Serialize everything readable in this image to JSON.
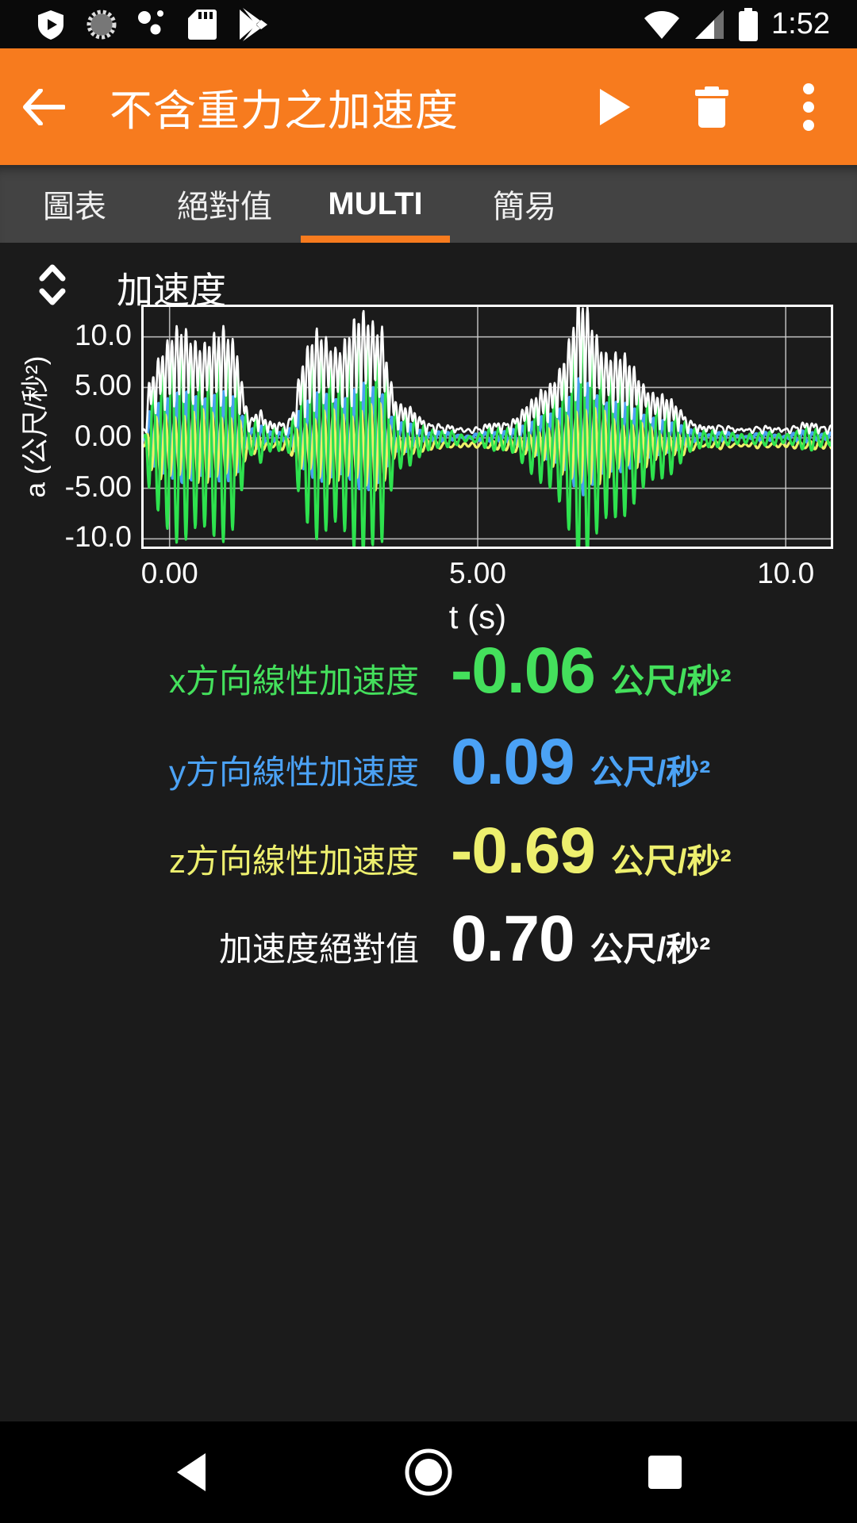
{
  "colors": {
    "accent_orange": "#f77b1e",
    "background": "#1b1b1b",
    "tab_bar": "#434343",
    "series_x_green": "#2ee24e",
    "series_y_blue": "#4aa0f0",
    "series_z_yellow": "#eef068",
    "series_abs_white": "#ffffff"
  },
  "status_bar": {
    "time": "1:52",
    "icons_left": [
      "play-protect-shield",
      "sync-spinner",
      "dots-cluster",
      "sd-card",
      "play-store"
    ],
    "icons_right": [
      "wifi",
      "cell-signal",
      "battery"
    ]
  },
  "app_bar": {
    "title": "不含重力之加速度",
    "back": "arrow-left",
    "actions": [
      {
        "name": "play",
        "icon": "play-triangle"
      },
      {
        "name": "delete",
        "icon": "trash"
      },
      {
        "name": "overflow",
        "icon": "three-dots-vertical"
      }
    ]
  },
  "tabs": {
    "items": [
      {
        "label": "圖表",
        "selected": false
      },
      {
        "label": "絕對值",
        "selected": false
      },
      {
        "label": "MULTI",
        "selected": true
      },
      {
        "label": "簡易",
        "selected": false
      }
    ]
  },
  "chart_data": {
    "type": "line",
    "title": "加速度",
    "xlabel": "t (s)",
    "ylabel": "a (公尺/秒²)",
    "x_range": [
      -0.46,
      10.77
    ],
    "y_range": [
      -11.0,
      13.2
    ],
    "x_ticks": [
      {
        "v": 0,
        "label": "0.00"
      },
      {
        "v": 5,
        "label": "5.00"
      },
      {
        "v": 10,
        "label": "10.0"
      }
    ],
    "y_ticks": [
      {
        "v": 10,
        "label": "10.0"
      },
      {
        "v": 5,
        "label": "5.00"
      },
      {
        "v": 0,
        "label": "0.00"
      },
      {
        "v": -5,
        "label": "-5.00"
      },
      {
        "v": -10,
        "label": "-10.0"
      }
    ],
    "grid": true,
    "legend": "none",
    "sample_rate_hz": 120,
    "carrier_freq_hz": 6.6,
    "envelope": [
      [
        -0.46,
        0.1
      ],
      [
        -0.4,
        0.35
      ],
      [
        -0.33,
        5.5
      ],
      [
        -0.15,
        8.6
      ],
      [
        0.3,
        8.9
      ],
      [
        0.6,
        9.4
      ],
      [
        0.9,
        8.8
      ],
      [
        1.1,
        7.8
      ],
      [
        1.22,
        3.5
      ],
      [
        1.32,
        1.6
      ],
      [
        1.45,
        2.6
      ],
      [
        1.6,
        1.2
      ],
      [
        1.9,
        0.9
      ],
      [
        2.02,
        2.8
      ],
      [
        2.12,
        6.8
      ],
      [
        2.4,
        8.6
      ],
      [
        2.7,
        9.0
      ],
      [
        3.0,
        9.6
      ],
      [
        3.2,
        10.2
      ],
      [
        3.45,
        11.2
      ],
      [
        3.58,
        5.5
      ],
      [
        3.7,
        2.6
      ],
      [
        3.95,
        2.2
      ],
      [
        4.2,
        1.4
      ],
      [
        4.45,
        0.6
      ],
      [
        4.75,
        0.45
      ],
      [
        5.05,
        0.55
      ],
      [
        5.3,
        0.95
      ],
      [
        5.6,
        1.8
      ],
      [
        5.9,
        3.0
      ],
      [
        6.2,
        5.2
      ],
      [
        6.45,
        8.2
      ],
      [
        6.65,
        11.6
      ],
      [
        6.85,
        10.2
      ],
      [
        7.1,
        8.2
      ],
      [
        7.4,
        6.6
      ],
      [
        7.65,
        5.2
      ],
      [
        7.95,
        3.9
      ],
      [
        8.2,
        2.7
      ],
      [
        8.45,
        1.4
      ],
      [
        8.7,
        0.8
      ],
      [
        9.1,
        0.55
      ],
      [
        9.5,
        0.5
      ],
      [
        9.9,
        0.55
      ],
      [
        10.2,
        0.75
      ],
      [
        10.5,
        1.0
      ],
      [
        10.77,
        0.9
      ]
    ],
    "series": [
      {
        "name": "x方向線性加速度",
        "color": "#2ee24e",
        "scale": 1.0,
        "phase": 0.0,
        "offset": -0.06,
        "noise": 0.25,
        "sag": 0.05,
        "width": 3.2
      },
      {
        "name": "y方向線性加速度",
        "color": "#4aa0f0",
        "scale": 0.46,
        "phase": 2.6,
        "offset": 0.09,
        "noise": 0.2,
        "sag": 0.0,
        "width": 4.0
      },
      {
        "name": "z方向線性加速度",
        "color": "#eef068",
        "scale": 0.36,
        "phase": 4.4,
        "offset": -0.69,
        "noise": 0.2,
        "sag": 0.04,
        "width": 3.2
      }
    ],
    "magnitude_series": {
      "name": "加速度絕對值",
      "color": "#ffffff",
      "width": 2.6
    }
  },
  "readings": [
    {
      "label": "x方向線性加速度",
      "value": "-0.06",
      "unit": "公尺/秒²",
      "color": "#44e05c"
    },
    {
      "label": "y方向線性加速度",
      "value": "0.09",
      "unit": "公尺/秒²",
      "color": "#4ba2f5"
    },
    {
      "label": "z方向線性加速度",
      "value": "-0.69",
      "unit": "公尺/秒²",
      "color": "#edef6e"
    },
    {
      "label": "加速度絕對值",
      "value": "0.70",
      "unit": "公尺/秒²",
      "color": "#ffffff"
    }
  ],
  "nav_bar": {
    "buttons": [
      "back",
      "home",
      "recents"
    ]
  }
}
